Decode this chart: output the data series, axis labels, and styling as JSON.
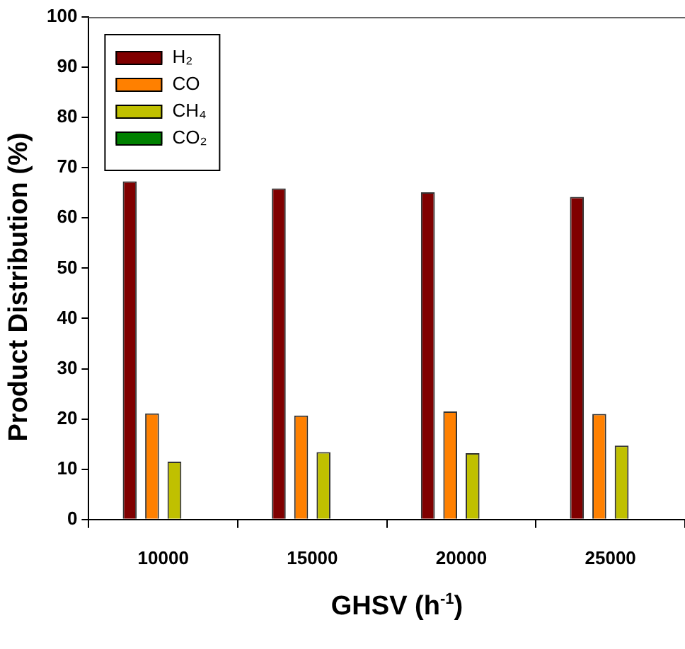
{
  "chart_data": {
    "type": "bar",
    "xlabel": "GHSV (h$^{-1}$)",
    "ylabel": "Product Distribution (%)",
    "categories": [
      "10000",
      "15000",
      "20000",
      "25000"
    ],
    "series": [
      {
        "name": "H₂",
        "color": "#800000",
        "values": [
          67.3,
          65.9,
          65.1,
          64.2
        ]
      },
      {
        "name": "CO",
        "color": "#ff8000",
        "values": [
          21.1,
          20.7,
          21.5,
          21.0
        ]
      },
      {
        "name": "CH₄",
        "color": "#c0c000",
        "values": [
          11.5,
          13.4,
          13.2,
          14.7
        ]
      },
      {
        "name": "CO₂",
        "color": "#008000",
        "values": [
          0,
          0,
          0,
          0
        ]
      }
    ],
    "ylim": [
      0,
      100
    ],
    "yticks": [
      0,
      10,
      20,
      30,
      40,
      50,
      60,
      70,
      80,
      90,
      100
    ],
    "grid": false,
    "legend": "top left"
  }
}
